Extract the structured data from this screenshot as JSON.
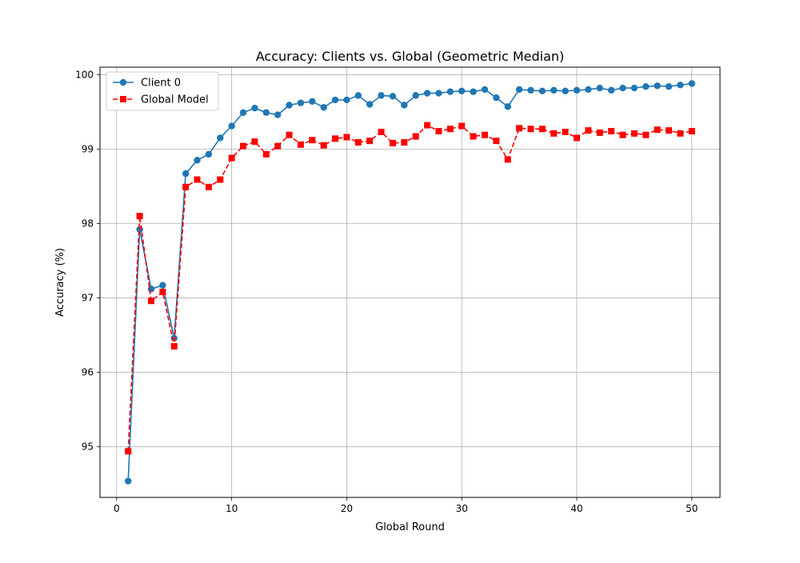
{
  "chart_data": {
    "type": "line",
    "title": "Accuracy: Clients vs. Global (Geometric Median)",
    "xlabel": "Global Round",
    "ylabel": "Accuracy (%)",
    "xlim": [
      -1.45,
      52.45
    ],
    "ylim": [
      94.32,
      100.1
    ],
    "xticks": [
      0,
      10,
      20,
      30,
      40,
      50
    ],
    "yticks": [
      95,
      96,
      97,
      98,
      99,
      100
    ],
    "grid": true,
    "legend_position": "upper-left",
    "x": [
      1,
      2,
      3,
      4,
      5,
      6,
      7,
      8,
      9,
      10,
      11,
      12,
      13,
      14,
      15,
      16,
      17,
      18,
      19,
      20,
      21,
      22,
      23,
      24,
      25,
      26,
      27,
      28,
      29,
      30,
      31,
      32,
      33,
      34,
      35,
      36,
      37,
      38,
      39,
      40,
      41,
      42,
      43,
      44,
      45,
      46,
      47,
      48,
      49,
      50
    ],
    "series": [
      {
        "name": "Client 0",
        "color": "#1f77b4",
        "linestyle": "solid",
        "marker": "circle",
        "values": [
          94.54,
          97.92,
          97.12,
          97.17,
          96.46,
          98.67,
          98.85,
          98.93,
          99.15,
          99.31,
          99.49,
          99.55,
          99.49,
          99.46,
          99.59,
          99.62,
          99.64,
          99.56,
          99.66,
          99.66,
          99.72,
          99.6,
          99.72,
          99.71,
          99.59,
          99.72,
          99.75,
          99.75,
          99.77,
          99.78,
          99.77,
          99.8,
          99.69,
          99.57,
          99.8,
          99.79,
          99.78,
          99.79,
          99.78,
          99.79,
          99.8,
          99.82,
          99.79,
          99.82,
          99.82,
          99.84,
          99.85,
          99.84,
          99.86,
          99.88
        ]
      },
      {
        "name": "Global Model",
        "color": "#ff0000",
        "linestyle": "dashed",
        "marker": "square",
        "values": [
          94.94,
          98.1,
          96.96,
          97.08,
          96.35,
          98.49,
          98.59,
          98.49,
          98.59,
          98.88,
          99.04,
          99.1,
          98.93,
          99.04,
          99.19,
          99.06,
          99.12,
          99.05,
          99.14,
          99.16,
          99.09,
          99.11,
          99.23,
          99.08,
          99.09,
          99.17,
          99.32,
          99.24,
          99.27,
          99.31,
          99.17,
          99.19,
          99.11,
          98.86,
          99.28,
          99.27,
          99.27,
          99.21,
          99.23,
          99.15,
          99.25,
          99.22,
          99.24,
          99.19,
          99.21,
          99.19,
          99.26,
          99.25,
          99.21,
          99.24
        ]
      }
    ]
  }
}
